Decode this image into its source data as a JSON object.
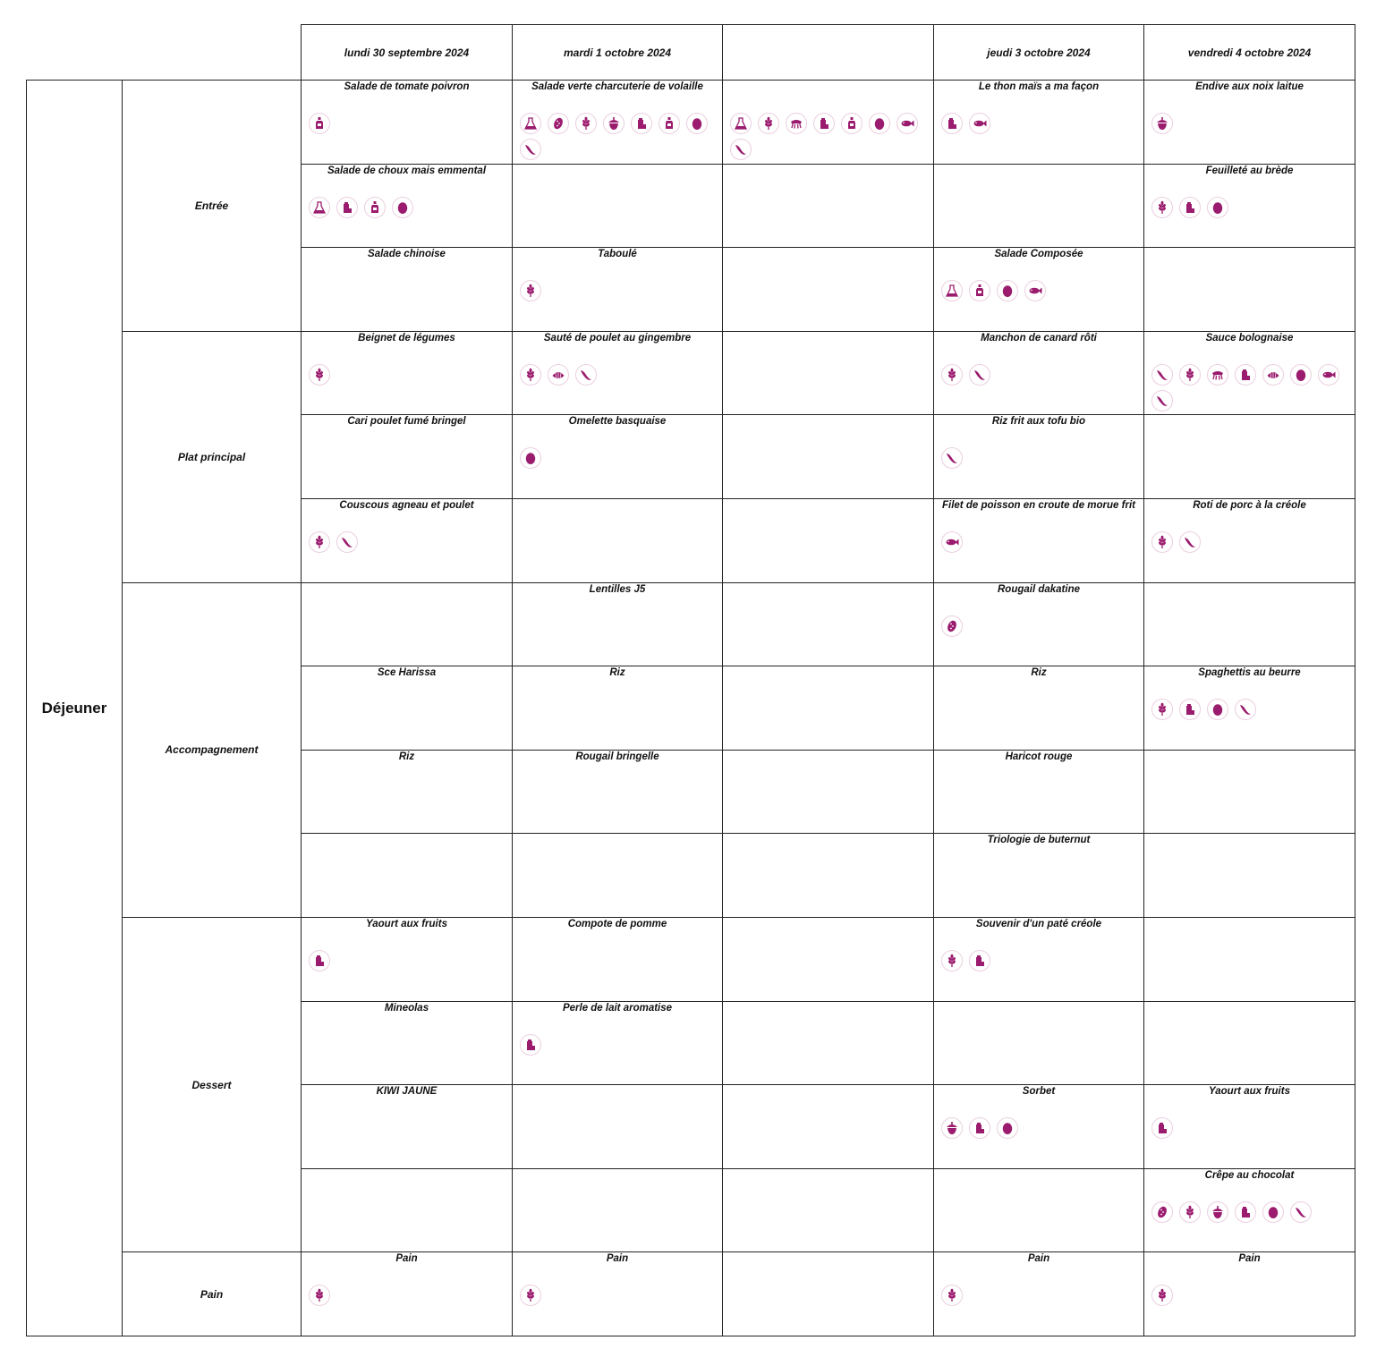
{
  "colors": {
    "icon": "#9b1b6e",
    "icon_ring": "#e9cfe0",
    "border": "#222222"
  },
  "meal": "Déjeuner",
  "days": [
    "lundi 30 septembre 2024",
    "mardi 1 octobre 2024",
    "",
    "jeudi 3 octobre 2024",
    "vendredi 4 octobre 2024"
  ],
  "categories": [
    {
      "label": "Entrée",
      "rows": 3
    },
    {
      "label": "Plat principal",
      "rows": 3
    },
    {
      "label": "Accompagnement",
      "rows": 4
    },
    {
      "label": "Dessert",
      "rows": 4
    },
    {
      "label": "Pain",
      "rows": 1
    }
  ],
  "rows": [
    [
      {
        "dish": "Salade de tomate poivron",
        "icons": [
          "mustard-icon"
        ]
      },
      {
        "dish": "Salade verte charcuterie de volaille",
        "icons": [
          "lupin-icon",
          "sesame-icon",
          "gluten-icon",
          "nuts-icon",
          "milk-icon",
          "mustard-icon",
          "egg-icon",
          "soy-icon"
        ]
      },
      {
        "dish": "",
        "icons": [
          "lupin-icon",
          "gluten-icon",
          "crustacean-icon",
          "milk-icon",
          "mustard-icon",
          "egg-icon",
          "fish-icon",
          "soy-icon"
        ]
      },
      {
        "dish": "Le thon maïs a ma façon",
        "icons": [
          "milk-icon",
          "fish-icon"
        ]
      },
      {
        "dish": "Endive aux noix laitue",
        "icons": [
          "nuts-icon"
        ]
      }
    ],
    [
      {
        "dish": "Salade de choux mais emmental",
        "icons": [
          "lupin-icon",
          "milk-icon",
          "mustard-icon",
          "egg-icon"
        ]
      },
      {
        "dish": "",
        "icons": []
      },
      {
        "dish": "",
        "icons": []
      },
      {
        "dish": "",
        "icons": []
      },
      {
        "dish": "Feuilleté au brède",
        "icons": [
          "gluten-icon",
          "milk-icon",
          "egg-icon"
        ]
      }
    ],
    [
      {
        "dish": "Salade chinoise",
        "icons": []
      },
      {
        "dish": "Taboulé",
        "icons": [
          "gluten-icon"
        ]
      },
      {
        "dish": "",
        "icons": []
      },
      {
        "dish": "Salade Composée",
        "icons": [
          "lupin-icon",
          "mustard-icon",
          "egg-icon",
          "fish-icon"
        ]
      },
      {
        "dish": "",
        "icons": []
      }
    ],
    [
      {
        "dish": "Beignet de légumes",
        "icons": [
          "gluten-icon"
        ]
      },
      {
        "dish": "Sauté de poulet au gingembre",
        "icons": [
          "gluten-icon",
          "mollusc-icon",
          "soy-icon"
        ]
      },
      {
        "dish": "",
        "icons": []
      },
      {
        "dish": "Manchon de canard rôti",
        "icons": [
          "gluten-icon",
          "soy-icon"
        ]
      },
      {
        "dish": "Sauce bolognaise",
        "icons": [
          "soy-icon",
          "gluten-icon",
          "crustacean-icon",
          "milk-icon",
          "mollusc-icon",
          "egg-icon",
          "fish-icon",
          "soy-icon"
        ]
      }
    ],
    [
      {
        "dish": "Cari poulet fumé bringel",
        "icons": []
      },
      {
        "dish": "Omelette basquaise",
        "icons": [
          "egg-icon"
        ]
      },
      {
        "dish": "",
        "icons": []
      },
      {
        "dish": "Riz frit aux tofu bio",
        "icons": [
          "soy-icon"
        ]
      },
      {
        "dish": "",
        "icons": []
      }
    ],
    [
      {
        "dish": "Couscous agneau et poulet",
        "icons": [
          "gluten-icon",
          "soy-icon"
        ]
      },
      {
        "dish": "",
        "icons": []
      },
      {
        "dish": "",
        "icons": []
      },
      {
        "dish": "Filet de poisson en croute de morue frit",
        "icons": [
          "fish-icon"
        ]
      },
      {
        "dish": "Roti de porc à la créole",
        "icons": [
          "gluten-icon",
          "soy-icon"
        ]
      }
    ],
    [
      {
        "dish": "",
        "icons": []
      },
      {
        "dish": "Lentilles J5",
        "icons": []
      },
      {
        "dish": "",
        "icons": []
      },
      {
        "dish": "Rougail dakatine",
        "icons": [
          "sesame-icon"
        ]
      },
      {
        "dish": "",
        "icons": []
      }
    ],
    [
      {
        "dish": "Sce Harissa",
        "icons": []
      },
      {
        "dish": "Riz",
        "icons": []
      },
      {
        "dish": "",
        "icons": []
      },
      {
        "dish": "Riz",
        "icons": []
      },
      {
        "dish": "Spaghettis au beurre",
        "icons": [
          "gluten-icon",
          "milk-icon",
          "egg-icon",
          "soy-icon"
        ]
      }
    ],
    [
      {
        "dish": "Riz",
        "icons": []
      },
      {
        "dish": "Rougail bringelle",
        "icons": []
      },
      {
        "dish": "",
        "icons": []
      },
      {
        "dish": "Haricot rouge",
        "icons": []
      },
      {
        "dish": "",
        "icons": []
      }
    ],
    [
      {
        "dish": "",
        "icons": []
      },
      {
        "dish": "",
        "icons": []
      },
      {
        "dish": "",
        "icons": []
      },
      {
        "dish": "Triologie de buternut",
        "icons": []
      },
      {
        "dish": "",
        "icons": []
      }
    ],
    [
      {
        "dish": "Yaourt aux fruits",
        "icons": [
          "milk-icon"
        ]
      },
      {
        "dish": "Compote de pomme",
        "icons": []
      },
      {
        "dish": "",
        "icons": []
      },
      {
        "dish": "Souvenir d'un paté créole",
        "icons": [
          "gluten-icon",
          "milk-icon"
        ]
      },
      {
        "dish": "",
        "icons": []
      }
    ],
    [
      {
        "dish": "Mineolas",
        "icons": []
      },
      {
        "dish": "Perle de lait aromatise",
        "icons": [
          "milk-icon"
        ]
      },
      {
        "dish": "",
        "icons": []
      },
      {
        "dish": "",
        "icons": []
      },
      {
        "dish": "",
        "icons": []
      }
    ],
    [
      {
        "dish": "KIWI JAUNE",
        "icons": []
      },
      {
        "dish": "",
        "icons": []
      },
      {
        "dish": "",
        "icons": []
      },
      {
        "dish": "Sorbet",
        "icons": [
          "nuts-icon",
          "milk-icon",
          "egg-icon"
        ]
      },
      {
        "dish": "Yaourt aux fruits",
        "icons": [
          "milk-icon"
        ]
      }
    ],
    [
      {
        "dish": "",
        "icons": []
      },
      {
        "dish": "",
        "icons": []
      },
      {
        "dish": "",
        "icons": []
      },
      {
        "dish": "",
        "icons": []
      },
      {
        "dish": "Crêpe au chocolat",
        "icons": [
          "sesame-icon",
          "gluten-icon",
          "nuts-icon",
          "milk-icon",
          "egg-icon",
          "soy-icon"
        ]
      }
    ],
    [
      {
        "dish": "Pain",
        "icons": [
          "gluten-icon"
        ]
      },
      {
        "dish": "Pain",
        "icons": [
          "gluten-icon"
        ]
      },
      {
        "dish": "",
        "icons": []
      },
      {
        "dish": "Pain",
        "icons": [
          "gluten-icon"
        ]
      },
      {
        "dish": "Pain",
        "icons": [
          "gluten-icon"
        ]
      }
    ]
  ]
}
